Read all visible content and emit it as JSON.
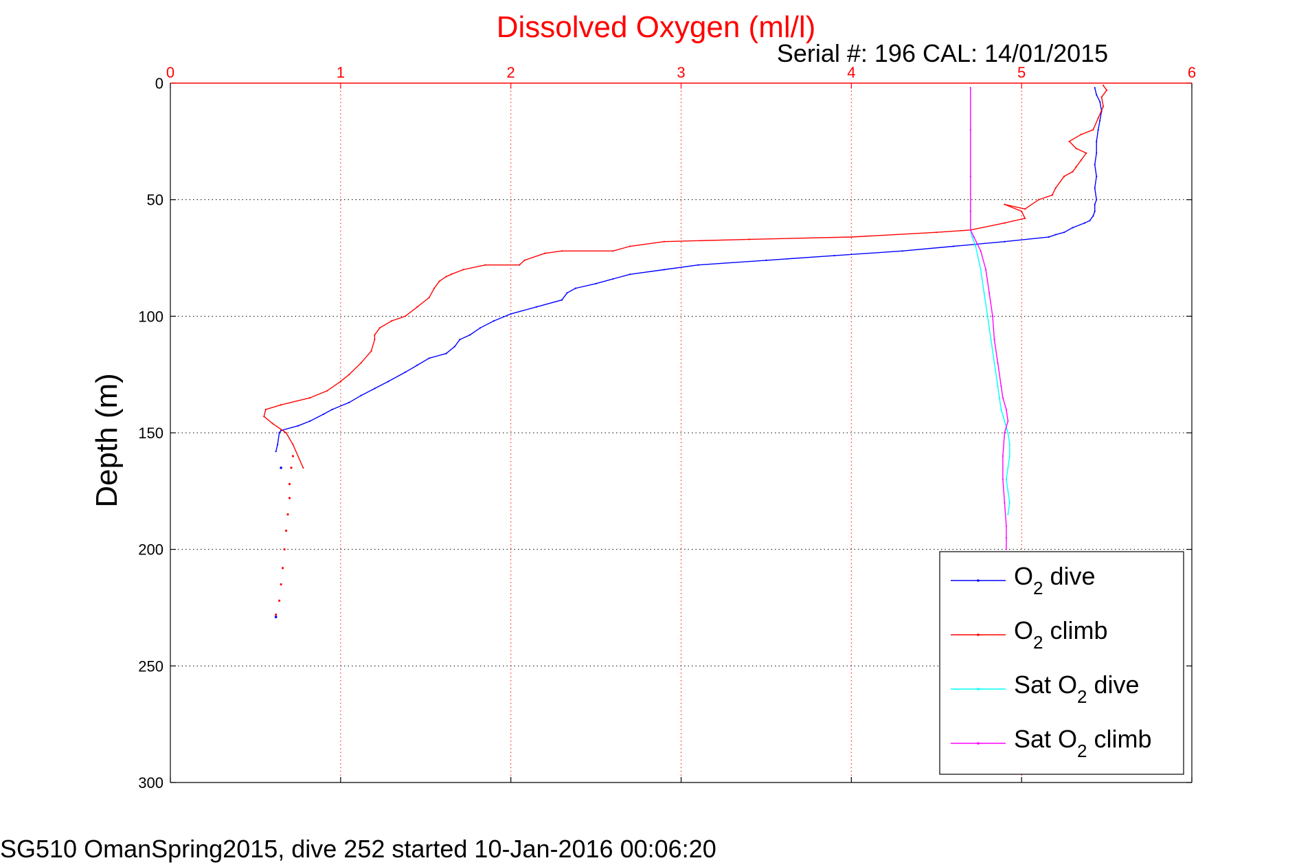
{
  "chart_data": {
    "type": "line",
    "title": "Dissolved Oxygen (ml/l)",
    "subtitle": "Serial #: 196  CAL: 14/01/2015",
    "ylabel": "Depth (m)",
    "caption": "SG510 OmanSpring2015, dive 252 started 10-Jan-2016 00:06:20",
    "xlim": [
      0,
      6
    ],
    "ylim": [
      0,
      300
    ],
    "y_reversed": true,
    "x_axis_position": "top",
    "grid": true,
    "x_ticks": [
      "0",
      "1",
      "2",
      "3",
      "4",
      "5",
      "6"
    ],
    "y_ticks": [
      "0",
      "50",
      "100",
      "150",
      "200",
      "250",
      "300"
    ],
    "legend_position": "bottom-right",
    "colors": {
      "title": "#ff0000",
      "x_axis": "#ff0000",
      "grid": "#000000",
      "o2_dive": "#0000ff",
      "o2_climb": "#ff0000",
      "sat_dive": "#00ffff",
      "sat_climb": "#ff00ff"
    },
    "series": [
      {
        "name": "O2 dive",
        "legend_main": "O",
        "legend_sub": "2",
        "legend_rest": " dive",
        "color": "#0000ff",
        "style": "line",
        "x": [
          5.43,
          5.44,
          5.46,
          5.47,
          5.46,
          5.45,
          5.44,
          5.44,
          5.43,
          5.44,
          5.43,
          5.44,
          5.43,
          5.43,
          5.42,
          5.4,
          5.37,
          5.3,
          5.25,
          5.2,
          5.16,
          4.9,
          4.6,
          4.3,
          3.9,
          3.5,
          3.1,
          2.9,
          2.7,
          2.6,
          2.5,
          2.38,
          2.33,
          2.3,
          2.15,
          2.0,
          1.9,
          1.82,
          1.76,
          1.7,
          1.67,
          1.62,
          1.52,
          1.45,
          1.38,
          1.28,
          1.2,
          1.12,
          1.05,
          0.95,
          0.9,
          0.82,
          0.75,
          0.65,
          0.64,
          0.63,
          0.62,
          0.65,
          0.62
        ],
        "y": [
          2,
          5,
          8,
          12,
          16,
          20,
          25,
          30,
          35,
          40,
          45,
          50,
          52,
          55,
          57,
          59,
          60,
          62,
          64,
          65,
          66,
          68,
          70,
          72,
          74,
          76,
          78,
          80,
          82,
          84,
          86,
          88,
          90,
          93,
          96,
          99,
          102,
          105,
          108,
          110,
          113,
          116,
          118,
          121,
          124,
          128,
          131,
          134,
          137,
          140,
          142,
          145,
          147,
          149,
          150,
          155,
          158,
          165,
          229
        ]
      },
      {
        "name": "O2 climb",
        "legend_main": "O",
        "legend_sub": "2",
        "legend_rest": " climb",
        "color": "#ff0000",
        "style": "line",
        "x": [
          0.62,
          0.64,
          0.65,
          0.66,
          0.67,
          0.68,
          0.69,
          0.7,
          0.7,
          0.71,
          0.72,
          0.78,
          0.72,
          0.68,
          0.6,
          0.55,
          0.56,
          0.65,
          0.82,
          0.92,
          1.0,
          1.05,
          1.12,
          1.18,
          1.2,
          1.2,
          1.23,
          1.3,
          1.38,
          1.45,
          1.52,
          1.55,
          1.58,
          1.62,
          1.65,
          1.72,
          1.85,
          2.05,
          2.08,
          2.2,
          2.3,
          2.6,
          2.7,
          2.9,
          3.4,
          4.0,
          4.5,
          4.7,
          4.9,
          5.02,
          5.0,
          4.9,
          5.02,
          5.1,
          5.18,
          5.2,
          5.25,
          5.3,
          5.32,
          5.35,
          5.38,
          5.32,
          5.28,
          5.35,
          5.42,
          5.45,
          5.48,
          5.47,
          5.5,
          5.48
        ],
        "y": [
          228,
          222,
          215,
          208,
          200,
          192,
          185,
          178,
          172,
          165,
          160,
          165,
          155,
          150,
          146,
          143,
          140,
          138,
          135,
          132,
          128,
          125,
          120,
          115,
          110,
          108,
          105,
          102,
          100,
          96,
          92,
          88,
          85,
          83,
          82,
          80,
          78,
          78,
          76,
          73,
          72,
          72,
          70,
          68,
          67,
          66,
          64,
          63,
          60,
          58,
          55,
          52,
          54,
          50,
          48,
          45,
          40,
          38,
          36,
          33,
          30,
          28,
          25,
          22,
          20,
          15,
          10,
          6,
          3,
          1
        ]
      },
      {
        "name": "Sat O2 dive",
        "legend_main": "Sat O",
        "legend_sub": "2",
        "legend_rest": " dive",
        "color": "#00ffff",
        "style": "line",
        "x": [
          4.7,
          4.7,
          4.7,
          4.7,
          4.7,
          4.71,
          4.73,
          4.76,
          4.78,
          4.8,
          4.82,
          4.84,
          4.86,
          4.87,
          4.88,
          4.9,
          4.92,
          4.93,
          4.93,
          4.92,
          4.91,
          4.92,
          4.93,
          4.92
        ],
        "y": [
          2,
          20,
          40,
          55,
          63,
          66,
          70,
          80,
          90,
          100,
          110,
          120,
          130,
          135,
          140,
          145,
          150,
          155,
          160,
          165,
          170,
          175,
          180,
          185
        ]
      },
      {
        "name": "Sat O2 climb",
        "legend_main": "Sat O",
        "legend_sub": "2",
        "legend_rest": " climb",
        "color": "#ff00ff",
        "style": "line",
        "x": [
          4.7,
          4.7,
          4.7,
          4.7,
          4.7,
          4.72,
          4.76,
          4.79,
          4.81,
          4.83,
          4.84,
          4.86,
          4.88,
          4.89,
          4.91,
          4.92,
          4.9,
          4.89,
          4.89,
          4.9,
          4.91,
          4.91,
          4.91
        ],
        "y": [
          2,
          20,
          40,
          55,
          63,
          66,
          72,
          80,
          90,
          100,
          110,
          120,
          130,
          135,
          140,
          145,
          150,
          160,
          170,
          180,
          190,
          195,
          200
        ]
      }
    ]
  }
}
